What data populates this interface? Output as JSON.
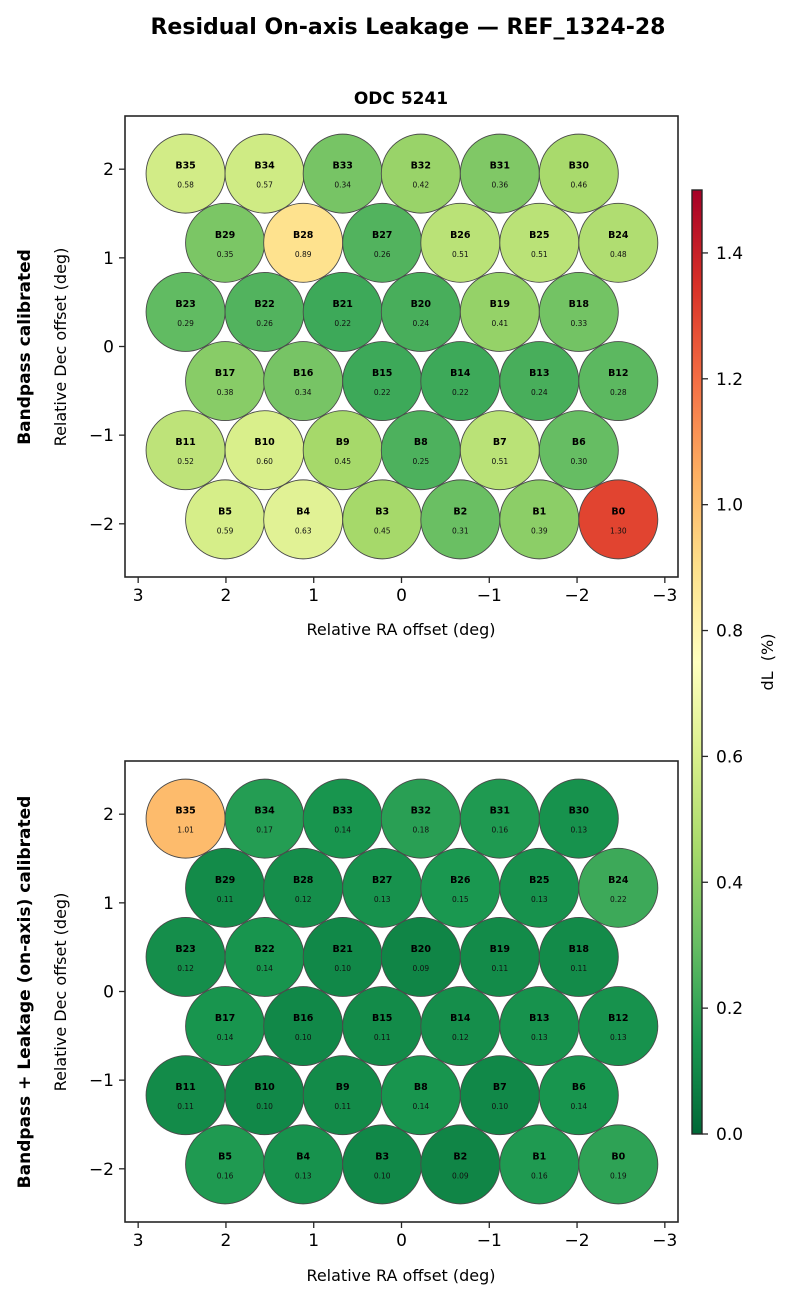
{
  "figure": {
    "suptitle": "Residual On-axis Leakage — REF_1324-28"
  },
  "colorbar": {
    "label": "dL  (%)",
    "vmin": 0.0,
    "vmax": 1.5,
    "colormap": "RdYlGn_r",
    "ticks": [
      "0.0",
      "0.2",
      "0.4",
      "0.6",
      "0.8",
      "1.0",
      "1.2",
      "1.4"
    ],
    "tick_values": [
      0.0,
      0.2,
      0.4,
      0.6,
      0.8,
      1.0,
      1.2,
      1.4
    ]
  },
  "chart_data": [
    {
      "type": "scatter",
      "subtype": "beam-footprint",
      "title": "ODC 5241",
      "row_label": "Bandpass calibrated",
      "xlabel": "Relative RA offset (deg)",
      "ylabel": "Relative Dec offset (deg)",
      "xlim": [
        3.15,
        -3.15
      ],
      "ylim": [
        -2.6,
        2.6
      ],
      "xticks": [
        3,
        2,
        1,
        0,
        -1,
        -2,
        -3
      ],
      "xtick_labels": [
        "3",
        "2",
        "1",
        "0",
        "−1",
        "−2",
        "−3"
      ],
      "yticks": [
        2,
        1,
        0,
        -1,
        -2
      ],
      "ytick_labels": [
        "2",
        "1",
        "0",
        "−1",
        "−2"
      ],
      "grid": false,
      "beams": [
        {
          "id": "B35",
          "ra": 2.46,
          "dec": 1.95,
          "value": 0.58
        },
        {
          "id": "B34",
          "ra": 1.56,
          "dec": 1.95,
          "value": 0.57
        },
        {
          "id": "B33",
          "ra": 0.67,
          "dec": 1.95,
          "value": 0.34
        },
        {
          "id": "B32",
          "ra": -0.22,
          "dec": 1.95,
          "value": 0.42
        },
        {
          "id": "B31",
          "ra": -1.12,
          "dec": 1.95,
          "value": 0.36
        },
        {
          "id": "B30",
          "ra": -2.02,
          "dec": 1.95,
          "value": 0.46
        },
        {
          "id": "B29",
          "ra": 2.01,
          "dec": 1.17,
          "value": 0.35
        },
        {
          "id": "B28",
          "ra": 1.12,
          "dec": 1.17,
          "value": 0.89
        },
        {
          "id": "B27",
          "ra": 0.22,
          "dec": 1.17,
          "value": 0.26
        },
        {
          "id": "B26",
          "ra": -0.67,
          "dec": 1.17,
          "value": 0.51
        },
        {
          "id": "B25",
          "ra": -1.57,
          "dec": 1.17,
          "value": 0.51
        },
        {
          "id": "B24",
          "ra": -2.47,
          "dec": 1.17,
          "value": 0.48
        },
        {
          "id": "B23",
          "ra": 2.46,
          "dec": 0.39,
          "value": 0.29
        },
        {
          "id": "B22",
          "ra": 1.56,
          "dec": 0.39,
          "value": 0.26
        },
        {
          "id": "B21",
          "ra": 0.67,
          "dec": 0.39,
          "value": 0.22
        },
        {
          "id": "B20",
          "ra": -0.22,
          "dec": 0.39,
          "value": 0.24
        },
        {
          "id": "B19",
          "ra": -1.12,
          "dec": 0.39,
          "value": 0.41
        },
        {
          "id": "B18",
          "ra": -2.02,
          "dec": 0.39,
          "value": 0.33
        },
        {
          "id": "B17",
          "ra": 2.01,
          "dec": -0.39,
          "value": 0.38
        },
        {
          "id": "B16",
          "ra": 1.12,
          "dec": -0.39,
          "value": 0.34
        },
        {
          "id": "B15",
          "ra": 0.22,
          "dec": -0.39,
          "value": 0.22
        },
        {
          "id": "B14",
          "ra": -0.67,
          "dec": -0.39,
          "value": 0.22
        },
        {
          "id": "B13",
          "ra": -1.57,
          "dec": -0.39,
          "value": 0.24
        },
        {
          "id": "B12",
          "ra": -2.47,
          "dec": -0.39,
          "value": 0.28
        },
        {
          "id": "B11",
          "ra": 2.46,
          "dec": -1.17,
          "value": 0.52
        },
        {
          "id": "B10",
          "ra": 1.56,
          "dec": -1.17,
          "value": 0.6
        },
        {
          "id": "B9",
          "ra": 0.67,
          "dec": -1.17,
          "value": 0.45
        },
        {
          "id": "B8",
          "ra": -0.22,
          "dec": -1.17,
          "value": 0.25
        },
        {
          "id": "B7",
          "ra": -1.12,
          "dec": -1.17,
          "value": 0.51
        },
        {
          "id": "B6",
          "ra": -2.02,
          "dec": -1.17,
          "value": 0.3
        },
        {
          "id": "B5",
          "ra": 2.01,
          "dec": -1.95,
          "value": 0.59
        },
        {
          "id": "B4",
          "ra": 1.12,
          "dec": -1.95,
          "value": 0.63
        },
        {
          "id": "B3",
          "ra": 0.22,
          "dec": -1.95,
          "value": 0.45
        },
        {
          "id": "B2",
          "ra": -0.67,
          "dec": -1.95,
          "value": 0.31
        },
        {
          "id": "B1",
          "ra": -1.57,
          "dec": -1.95,
          "value": 0.39
        },
        {
          "id": "B0",
          "ra": -2.47,
          "dec": -1.95,
          "value": 1.3
        }
      ]
    },
    {
      "type": "scatter",
      "subtype": "beam-footprint",
      "title": "",
      "row_label": "Bandpass + Leakage (on-axis) calibrated",
      "xlabel": "Relative RA offset (deg)",
      "ylabel": "Relative Dec offset (deg)",
      "xlim": [
        3.15,
        -3.15
      ],
      "ylim": [
        -2.6,
        2.6
      ],
      "xticks": [
        3,
        2,
        1,
        0,
        -1,
        -2,
        -3
      ],
      "xtick_labels": [
        "3",
        "2",
        "1",
        "0",
        "−1",
        "−2",
        "−3"
      ],
      "yticks": [
        2,
        1,
        0,
        -1,
        -2
      ],
      "ytick_labels": [
        "2",
        "1",
        "0",
        "−1",
        "−2"
      ],
      "grid": false,
      "beams": [
        {
          "id": "B35",
          "ra": 2.46,
          "dec": 1.95,
          "value": 1.01
        },
        {
          "id": "B34",
          "ra": 1.56,
          "dec": 1.95,
          "value": 0.17
        },
        {
          "id": "B33",
          "ra": 0.67,
          "dec": 1.95,
          "value": 0.14
        },
        {
          "id": "B32",
          "ra": -0.22,
          "dec": 1.95,
          "value": 0.18
        },
        {
          "id": "B31",
          "ra": -1.12,
          "dec": 1.95,
          "value": 0.16
        },
        {
          "id": "B30",
          "ra": -2.02,
          "dec": 1.95,
          "value": 0.13
        },
        {
          "id": "B29",
          "ra": 2.01,
          "dec": 1.17,
          "value": 0.11
        },
        {
          "id": "B28",
          "ra": 1.12,
          "dec": 1.17,
          "value": 0.12
        },
        {
          "id": "B27",
          "ra": 0.22,
          "dec": 1.17,
          "value": 0.13
        },
        {
          "id": "B26",
          "ra": -0.67,
          "dec": 1.17,
          "value": 0.15
        },
        {
          "id": "B25",
          "ra": -1.57,
          "dec": 1.17,
          "value": 0.13
        },
        {
          "id": "B24",
          "ra": -2.47,
          "dec": 1.17,
          "value": 0.22
        },
        {
          "id": "B23",
          "ra": 2.46,
          "dec": 0.39,
          "value": 0.12
        },
        {
          "id": "B22",
          "ra": 1.56,
          "dec": 0.39,
          "value": 0.14
        },
        {
          "id": "B21",
          "ra": 0.67,
          "dec": 0.39,
          "value": 0.1
        },
        {
          "id": "B20",
          "ra": -0.22,
          "dec": 0.39,
          "value": 0.09
        },
        {
          "id": "B19",
          "ra": -1.12,
          "dec": 0.39,
          "value": 0.11
        },
        {
          "id": "B18",
          "ra": -2.02,
          "dec": 0.39,
          "value": 0.11
        },
        {
          "id": "B17",
          "ra": 2.01,
          "dec": -0.39,
          "value": 0.14
        },
        {
          "id": "B16",
          "ra": 1.12,
          "dec": -0.39,
          "value": 0.1
        },
        {
          "id": "B15",
          "ra": 0.22,
          "dec": -0.39,
          "value": 0.11
        },
        {
          "id": "B14",
          "ra": -0.67,
          "dec": -0.39,
          "value": 0.12
        },
        {
          "id": "B13",
          "ra": -1.57,
          "dec": -0.39,
          "value": 0.13
        },
        {
          "id": "B12",
          "ra": -2.47,
          "dec": -0.39,
          "value": 0.13
        },
        {
          "id": "B11",
          "ra": 2.46,
          "dec": -1.17,
          "value": 0.11
        },
        {
          "id": "B10",
          "ra": 1.56,
          "dec": -1.17,
          "value": 0.1
        },
        {
          "id": "B9",
          "ra": 0.67,
          "dec": -1.17,
          "value": 0.11
        },
        {
          "id": "B8",
          "ra": -0.22,
          "dec": -1.17,
          "value": 0.14
        },
        {
          "id": "B7",
          "ra": -1.12,
          "dec": -1.17,
          "value": 0.1
        },
        {
          "id": "B6",
          "ra": -2.02,
          "dec": -1.17,
          "value": 0.14
        },
        {
          "id": "B5",
          "ra": 2.01,
          "dec": -1.95,
          "value": 0.16
        },
        {
          "id": "B4",
          "ra": 1.12,
          "dec": -1.95,
          "value": 0.13
        },
        {
          "id": "B3",
          "ra": 0.22,
          "dec": -1.95,
          "value": 0.1
        },
        {
          "id": "B2",
          "ra": -0.67,
          "dec": -1.95,
          "value": 0.09
        },
        {
          "id": "B1",
          "ra": -1.57,
          "dec": -1.95,
          "value": 0.16
        },
        {
          "id": "B0",
          "ra": -2.47,
          "dec": -1.95,
          "value": 0.19
        }
      ]
    }
  ]
}
